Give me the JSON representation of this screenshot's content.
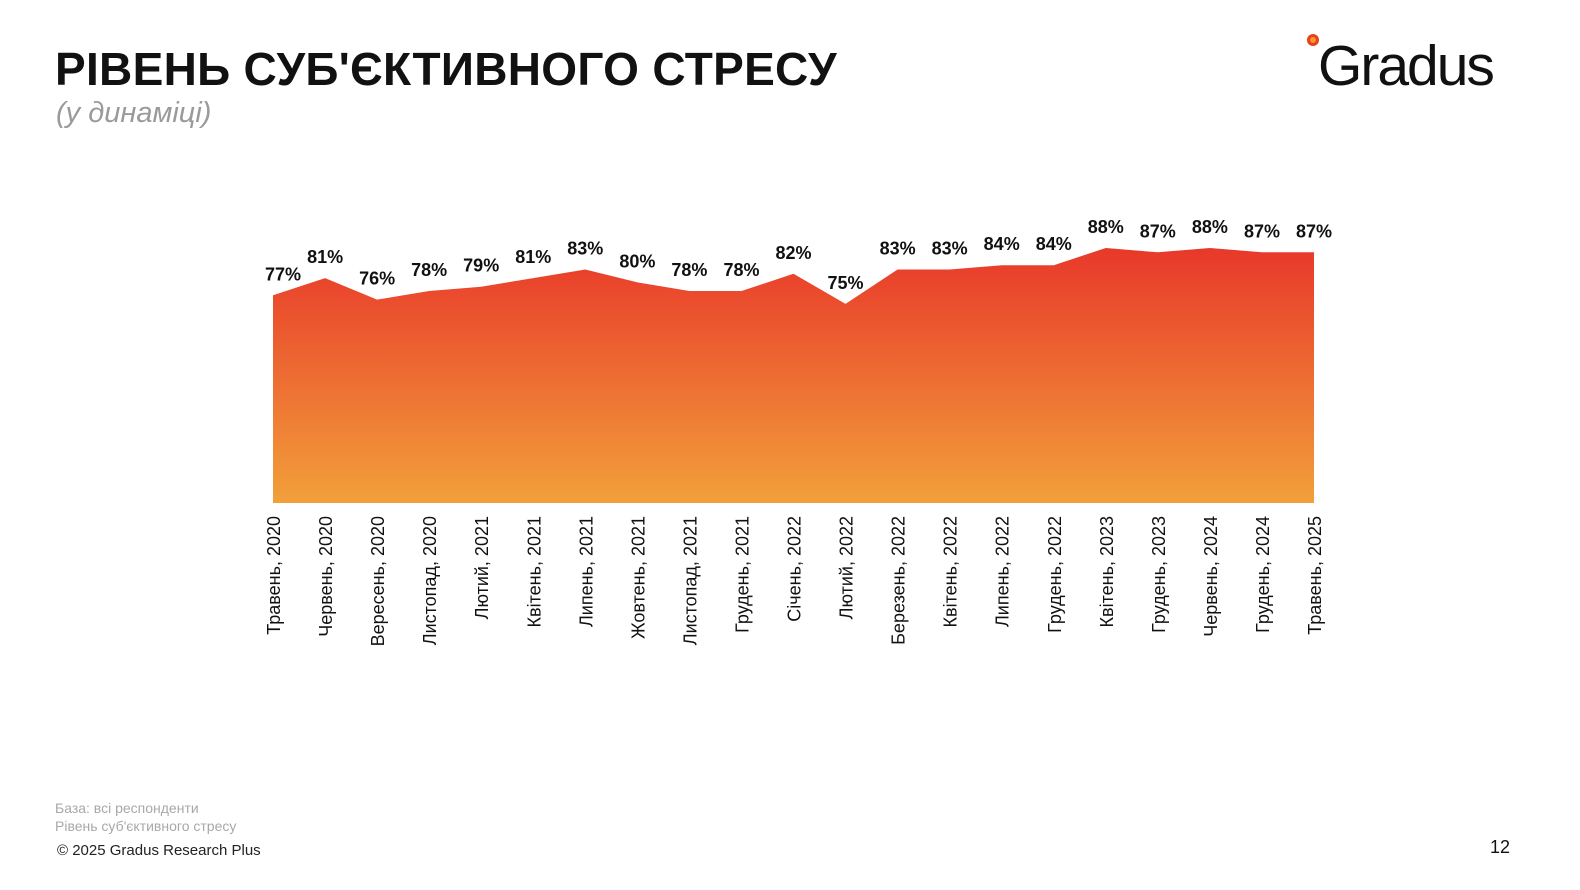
{
  "header": {
    "title": "РІВЕНЬ СУБ'ЄКТИВНОГО СТРЕСУ",
    "subtitle": "(у динаміці)"
  },
  "logo": {
    "text": "Gradus"
  },
  "chart_data": {
    "type": "area",
    "categories": [
      "Травень, 2020",
      "Червень, 2020",
      "Вересень, 2020",
      "Листопад, 2020",
      "Лютий, 2021",
      "Квітень, 2021",
      "Липень, 2021",
      "Жовтень, 2021",
      "Листопад, 2021",
      "Грудень, 2021",
      "Січень, 2022",
      "Лютий, 2022",
      "Березень, 2022",
      "Квітень, 2022",
      "Липень, 2022",
      "Грудень, 2022",
      "Квітень, 2023",
      "Грудень, 2023",
      "Червень, 2024",
      "Грудень, 2024",
      "Травень, 2025"
    ],
    "values": [
      77,
      81,
      76,
      78,
      79,
      81,
      83,
      80,
      78,
      78,
      82,
      75,
      83,
      83,
      84,
      84,
      88,
      87,
      88,
      87,
      87
    ],
    "data_labels": [
      "77%",
      "81%",
      "76%",
      "78%",
      "79%",
      "81%",
      "83%",
      "80%",
      "78%",
      "78%",
      "82%",
      "75%",
      "83%",
      "83%",
      "84%",
      "84%",
      "88%",
      "87%",
      "88%",
      "87%",
      "87%"
    ],
    "fill_gradient": {
      "top": "#e8382a",
      "bottom": "#f2a03a"
    },
    "grid": false,
    "legend": "none"
  },
  "footer": {
    "base": "База: всі респонденти",
    "note": "Рівень суб'єктивного стресу",
    "copyright": "© 2025 Gradus Research Plus",
    "page": "12"
  }
}
